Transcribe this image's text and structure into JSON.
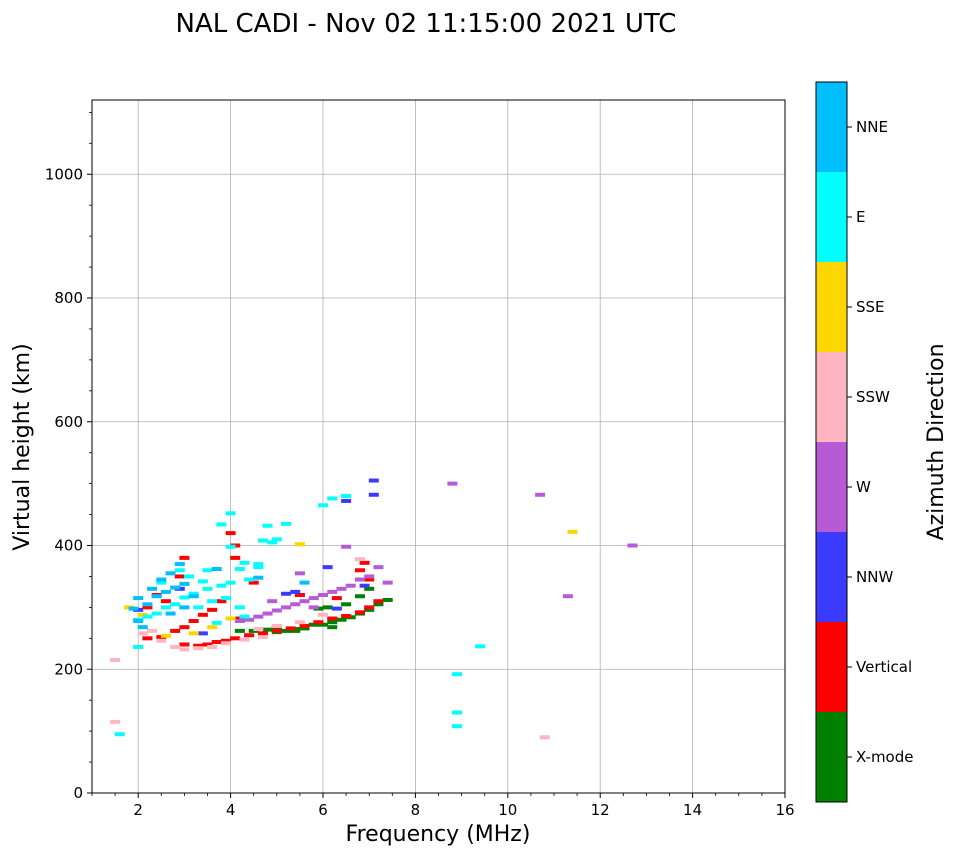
{
  "chart_data": {
    "type": "scatter",
    "title": "NAL CADI - Nov 02 11:15:00 2021 UTC",
    "xlabel": "Frequency (MHz)",
    "ylabel": "Virtual height (km)",
    "xlim": [
      1,
      16
    ],
    "ylim": [
      0,
      1120
    ],
    "xticks": [
      2,
      4,
      6,
      8,
      10,
      12,
      14,
      16
    ],
    "yticks": [
      0,
      200,
      400,
      600,
      800,
      1000
    ],
    "grid": true,
    "colorbar": {
      "label": "Azimuth Direction",
      "categories": [
        {
          "name": "X-mode",
          "color": "#008000"
        },
        {
          "name": "Vertical",
          "color": "#ff0000"
        },
        {
          "name": "NNW",
          "color": "#3b3bff"
        },
        {
          "name": "W",
          "color": "#b65ad6"
        },
        {
          "name": "SSW",
          "color": "#ffb6c1"
        },
        {
          "name": "SSE",
          "color": "#ffd700"
        },
        {
          "name": "E",
          "color": "#00ffff"
        },
        {
          "name": "NNE",
          "color": "#00bfff"
        }
      ]
    },
    "series": [
      {
        "name": "X-mode",
        "points": [
          [
            4.2,
            262
          ],
          [
            4.5,
            262
          ],
          [
            4.8,
            264
          ],
          [
            5.0,
            260
          ],
          [
            5.2,
            262
          ],
          [
            5.4,
            265
          ],
          [
            5.6,
            270
          ],
          [
            5.8,
            272
          ],
          [
            6.0,
            272
          ],
          [
            6.2,
            276
          ],
          [
            6.4,
            280
          ],
          [
            6.6,
            284
          ],
          [
            6.8,
            290
          ],
          [
            7.0,
            296
          ],
          [
            7.2,
            305
          ],
          [
            7.4,
            312
          ],
          [
            5.0,
            268
          ],
          [
            5.4,
            262
          ],
          [
            5.9,
            298
          ],
          [
            6.1,
            300
          ],
          [
            6.5,
            305
          ],
          [
            6.8,
            318
          ],
          [
            7.0,
            330
          ],
          [
            6.2,
            268
          ],
          [
            5.6,
            266
          ]
        ]
      },
      {
        "name": "Vertical",
        "points": [
          [
            2.2,
            250
          ],
          [
            2.5,
            252
          ],
          [
            2.8,
            262
          ],
          [
            3.0,
            268
          ],
          [
            3.2,
            278
          ],
          [
            3.4,
            288
          ],
          [
            3.6,
            296
          ],
          [
            3.0,
            240
          ],
          [
            3.3,
            238
          ],
          [
            3.5,
            240
          ],
          [
            3.7,
            244
          ],
          [
            3.9,
            246
          ],
          [
            4.1,
            250
          ],
          [
            4.4,
            255
          ],
          [
            4.7,
            258
          ],
          [
            5.0,
            262
          ],
          [
            5.3,
            266
          ],
          [
            5.6,
            270
          ],
          [
            5.9,
            276
          ],
          [
            6.2,
            282
          ],
          [
            6.5,
            286
          ],
          [
            6.8,
            292
          ],
          [
            7.0,
            300
          ],
          [
            7.2,
            310
          ],
          [
            7.0,
            345
          ],
          [
            6.8,
            360
          ],
          [
            4.0,
            420
          ],
          [
            4.1,
            400
          ],
          [
            4.1,
            380
          ],
          [
            2.6,
            310
          ],
          [
            2.4,
            320
          ],
          [
            2.2,
            300
          ],
          [
            3.0,
            380
          ],
          [
            2.9,
            350
          ],
          [
            4.5,
            340
          ],
          [
            5.5,
            320
          ],
          [
            6.3,
            315
          ],
          [
            3.8,
            310
          ],
          [
            4.2,
            282
          ],
          [
            6.9,
            372
          ]
        ]
      },
      {
        "name": "NNW",
        "points": [
          [
            7.1,
            482
          ],
          [
            7.1,
            505
          ],
          [
            6.5,
            472
          ],
          [
            5.4,
            325
          ],
          [
            6.3,
            298
          ],
          [
            3.4,
            258
          ],
          [
            2.0,
            296
          ],
          [
            2.9,
            330
          ],
          [
            6.9,
            335
          ],
          [
            5.2,
            322
          ],
          [
            6.1,
            365
          ]
        ]
      },
      {
        "name": "W",
        "points": [
          [
            8.8,
            500
          ],
          [
            10.7,
            482
          ],
          [
            12.7,
            400
          ],
          [
            11.3,
            318
          ],
          [
            7.4,
            340
          ],
          [
            7.0,
            350
          ],
          [
            6.8,
            345
          ],
          [
            6.6,
            335
          ],
          [
            6.4,
            330
          ],
          [
            6.2,
            325
          ],
          [
            6.0,
            320
          ],
          [
            5.8,
            315
          ],
          [
            5.6,
            310
          ],
          [
            5.4,
            305
          ],
          [
            5.2,
            300
          ],
          [
            5.0,
            295
          ],
          [
            4.8,
            290
          ],
          [
            4.6,
            285
          ],
          [
            4.4,
            280
          ],
          [
            4.2,
            278
          ],
          [
            5.5,
            355
          ],
          [
            6.5,
            398
          ],
          [
            7.2,
            365
          ],
          [
            5.8,
            300
          ],
          [
            4.9,
            310
          ]
        ]
      },
      {
        "name": "SSW",
        "points": [
          [
            10.8,
            90
          ],
          [
            1.5,
            115
          ],
          [
            1.5,
            215
          ],
          [
            2.1,
            258
          ],
          [
            2.5,
            246
          ],
          [
            2.8,
            236
          ],
          [
            3.0,
            232
          ],
          [
            3.3,
            234
          ],
          [
            3.6,
            236
          ],
          [
            3.9,
            242
          ],
          [
            4.3,
            248
          ],
          [
            4.7,
            252
          ],
          [
            5.0,
            270
          ],
          [
            5.5,
            276
          ],
          [
            6.0,
            288
          ],
          [
            6.8,
            378
          ],
          [
            2.3,
            262
          ],
          [
            4.6,
            265
          ]
        ]
      },
      {
        "name": "SSE",
        "points": [
          [
            11.4,
            422
          ],
          [
            5.5,
            402
          ],
          [
            3.2,
            258
          ],
          [
            2.6,
            254
          ],
          [
            3.6,
            268
          ],
          [
            1.8,
            300
          ],
          [
            2.1,
            288
          ],
          [
            4.0,
            282
          ]
        ]
      },
      {
        "name": "E",
        "points": [
          [
            9.4,
            237
          ],
          [
            8.9,
            192
          ],
          [
            8.9,
            130
          ],
          [
            8.9,
            108
          ],
          [
            1.6,
            95
          ],
          [
            3.8,
            434
          ],
          [
            4.0,
            452
          ],
          [
            4.8,
            432
          ],
          [
            5.2,
            435
          ],
          [
            6.0,
            465
          ],
          [
            6.2,
            476
          ],
          [
            6.5,
            480
          ],
          [
            4.9,
            405
          ],
          [
            5.0,
            410
          ],
          [
            4.6,
            370
          ],
          [
            4.2,
            362
          ],
          [
            4.0,
            340
          ],
          [
            3.8,
            335
          ],
          [
            3.5,
            330
          ],
          [
            3.2,
            322
          ],
          [
            3.0,
            316
          ],
          [
            2.8,
            305
          ],
          [
            2.6,
            300
          ],
          [
            2.4,
            290
          ],
          [
            2.2,
            285
          ],
          [
            2.0,
            280
          ],
          [
            3.6,
            310
          ],
          [
            3.3,
            300
          ],
          [
            3.1,
            350
          ],
          [
            3.5,
            360
          ],
          [
            4.3,
            372
          ],
          [
            4.6,
            365
          ],
          [
            4.4,
            345
          ],
          [
            3.9,
            315
          ],
          [
            4.2,
            300
          ],
          [
            2.9,
            360
          ],
          [
            2.5,
            340
          ],
          [
            3.4,
            342
          ],
          [
            4.7,
            408
          ],
          [
            2.0,
            236
          ],
          [
            4.0,
            398
          ],
          [
            4.3,
            285
          ],
          [
            3.7,
            275
          ]
        ]
      },
      {
        "name": "NNE",
        "points": [
          [
            1.9,
            298
          ],
          [
            2.0,
            315
          ],
          [
            2.2,
            305
          ],
          [
            2.4,
            318
          ],
          [
            2.6,
            325
          ],
          [
            2.8,
            332
          ],
          [
            3.0,
            338
          ],
          [
            2.7,
            355
          ],
          [
            2.5,
            345
          ],
          [
            2.3,
            330
          ],
          [
            3.2,
            318
          ],
          [
            3.0,
            300
          ],
          [
            2.7,
            290
          ],
          [
            2.0,
            278
          ],
          [
            2.9,
            370
          ],
          [
            4.6,
            348
          ],
          [
            5.6,
            340
          ],
          [
            3.7,
            362
          ],
          [
            2.1,
            268
          ]
        ]
      }
    ]
  }
}
